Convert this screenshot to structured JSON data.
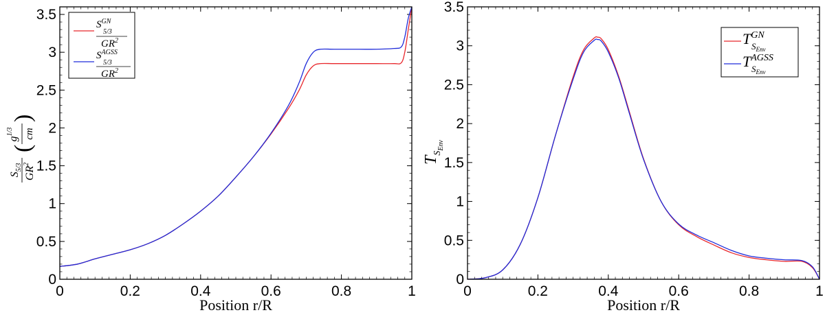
{
  "chart_data": [
    {
      "type": "line",
      "xlabel": "Position r/R",
      "ylabel": {
        "base": "S",
        "sub": "5/3",
        "den": "GR",
        "den_sup": "2",
        "unit_num": "g",
        "unit_num_sup": "1/3",
        "unit_den": "cm"
      },
      "xlim": [
        0,
        1
      ],
      "ylim": [
        0,
        3.6
      ],
      "xticks": [
        "0",
        "0.2",
        "0.4",
        "0.6",
        "0.8",
        "1"
      ],
      "xtick_values": [
        0,
        0.2,
        0.4,
        0.6,
        0.8,
        1
      ],
      "yticks": [
        "0",
        "0.5",
        "1",
        "1.5",
        "2",
        "2.5",
        "3",
        "3.5"
      ],
      "ytick_values": [
        0,
        0.5,
        1,
        1.5,
        2,
        2.5,
        3,
        3.5
      ],
      "legend_position": "top-left",
      "series": [
        {
          "legend": {
            "base": "S",
            "sup": "GN",
            "sub": "5/3",
            "den": "GR",
            "den_sup": "2"
          },
          "color": "#e8262b",
          "x": [
            0,
            0.05,
            0.1,
            0.15,
            0.2,
            0.25,
            0.3,
            0.35,
            0.4,
            0.45,
            0.5,
            0.55,
            0.6,
            0.65,
            0.68,
            0.7,
            0.72,
            0.74,
            0.78,
            0.85,
            0.9,
            0.95,
            0.97,
            0.98,
            0.99,
            1.0
          ],
          "y": [
            0.17,
            0.2,
            0.27,
            0.33,
            0.39,
            0.47,
            0.58,
            0.73,
            0.9,
            1.1,
            1.35,
            1.62,
            1.92,
            2.26,
            2.5,
            2.7,
            2.82,
            2.85,
            2.85,
            2.85,
            2.85,
            2.85,
            2.86,
            3.0,
            3.3,
            3.6
          ]
        },
        {
          "legend": {
            "base": "S",
            "sup": "AGSS",
            "sub": "5/3",
            "den": "GR",
            "den_sup": "2"
          },
          "color": "#1f2bd9",
          "x": [
            0,
            0.05,
            0.1,
            0.15,
            0.2,
            0.25,
            0.3,
            0.35,
            0.4,
            0.45,
            0.5,
            0.55,
            0.6,
            0.65,
            0.68,
            0.7,
            0.72,
            0.74,
            0.78,
            0.85,
            0.9,
            0.95,
            0.97,
            0.98,
            0.99,
            1.0
          ],
          "y": [
            0.17,
            0.2,
            0.27,
            0.33,
            0.39,
            0.47,
            0.58,
            0.73,
            0.9,
            1.1,
            1.35,
            1.62,
            1.93,
            2.3,
            2.6,
            2.85,
            3.0,
            3.04,
            3.04,
            3.04,
            3.04,
            3.05,
            3.07,
            3.2,
            3.45,
            3.6
          ]
        }
      ]
    },
    {
      "type": "line",
      "xlabel": "Position r/R",
      "ylabel": {
        "base": "T",
        "sub": "S",
        "subsub": "Env"
      },
      "xlim": [
        0,
        1
      ],
      "ylim": [
        0,
        3.5
      ],
      "xticks": [
        "0",
        "0.2",
        "0.4",
        "0.6",
        "0.8",
        "1"
      ],
      "xtick_values": [
        0,
        0.2,
        0.4,
        0.6,
        0.8,
        1
      ],
      "yticks": [
        "0",
        "0.5",
        "1",
        "1.5",
        "2",
        "2.5",
        "3",
        "3.5"
      ],
      "ytick_values": [
        0,
        0.5,
        1,
        1.5,
        2,
        2.5,
        3,
        3.5
      ],
      "legend_position": "top-right",
      "series": [
        {
          "legend": {
            "base": "T",
            "sup": "GN",
            "sub": "S",
            "subsub": "Env"
          },
          "color": "#e8262b",
          "x": [
            0,
            0.05,
            0.1,
            0.15,
            0.2,
            0.25,
            0.3,
            0.33,
            0.36,
            0.37,
            0.38,
            0.4,
            0.43,
            0.46,
            0.5,
            0.55,
            0.6,
            0.65,
            0.7,
            0.75,
            0.8,
            0.85,
            0.9,
            0.95,
            0.98,
            1.0
          ],
          "y": [
            0,
            0.02,
            0.12,
            0.45,
            1.05,
            1.85,
            2.6,
            2.95,
            3.1,
            3.11,
            3.09,
            2.95,
            2.6,
            2.15,
            1.55,
            1.0,
            0.7,
            0.55,
            0.44,
            0.34,
            0.28,
            0.25,
            0.23,
            0.23,
            0.15,
            0
          ]
        },
        {
          "legend": {
            "base": "T",
            "sup": "AGSS",
            "sub": "S",
            "subsub": "Env"
          },
          "color": "#1f2bd9",
          "x": [
            0,
            0.05,
            0.1,
            0.15,
            0.2,
            0.25,
            0.3,
            0.33,
            0.36,
            0.37,
            0.38,
            0.4,
            0.43,
            0.46,
            0.5,
            0.55,
            0.6,
            0.65,
            0.7,
            0.75,
            0.8,
            0.85,
            0.9,
            0.95,
            0.98,
            1.0
          ],
          "y": [
            0,
            0.02,
            0.12,
            0.45,
            1.05,
            1.85,
            2.57,
            2.92,
            3.07,
            3.08,
            3.06,
            2.92,
            2.58,
            2.13,
            1.54,
            1.0,
            0.71,
            0.57,
            0.47,
            0.37,
            0.3,
            0.27,
            0.25,
            0.24,
            0.16,
            0
          ]
        }
      ]
    }
  ]
}
